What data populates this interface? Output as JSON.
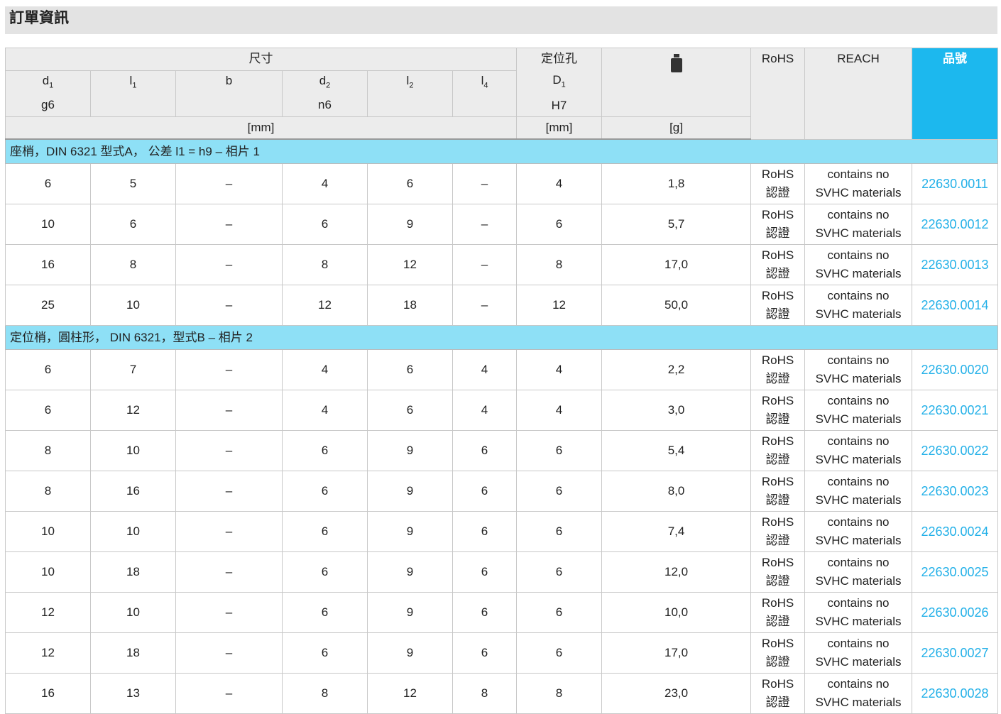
{
  "title": "訂單資訊",
  "header": {
    "group_dims": "尺寸",
    "d1": "d",
    "d1_sub": "1",
    "d1_tol": "g6",
    "l1": "l",
    "l1_sub": "1",
    "b": "b",
    "d2": "d",
    "d2_sub": "2",
    "d2_tol": "n6",
    "l2": "l",
    "l2_sub": "2",
    "l4": "l",
    "l4_sub": "4",
    "hole": "定位孔",
    "D1": "D",
    "D1_sub": "1",
    "D1_tol": "H7",
    "mm": "[mm]",
    "hole_mm": "[mm]",
    "g": "[g]",
    "weight_icon": "weight-icon",
    "rohs": "RoHS",
    "reach": "REACH",
    "part_no": "品號"
  },
  "sections": [
    {
      "label": "座梢，DIN 6321 型式A， 公差 l1 = h9  – 相片 1",
      "rows": [
        [
          "6",
          "5",
          "–",
          "4",
          "6",
          "–",
          "4",
          "1,8",
          "22630.0011"
        ],
        [
          "10",
          "6",
          "–",
          "6",
          "9",
          "–",
          "6",
          "5,7",
          "22630.0012"
        ],
        [
          "16",
          "8",
          "–",
          "8",
          "12",
          "–",
          "8",
          "17,0",
          "22630.0013"
        ],
        [
          "25",
          "10",
          "–",
          "12",
          "18",
          "–",
          "12",
          "50,0",
          "22630.0014"
        ]
      ]
    },
    {
      "label": "定位梢，圓柱形， DIN 6321，型式B – 相片 2",
      "rows": [
        [
          "6",
          "7",
          "–",
          "4",
          "6",
          "4",
          "4",
          "2,2",
          "22630.0020"
        ],
        [
          "6",
          "12",
          "–",
          "4",
          "6",
          "4",
          "4",
          "3,0",
          "22630.0021"
        ],
        [
          "8",
          "10",
          "–",
          "6",
          "9",
          "6",
          "6",
          "5,4",
          "22630.0022"
        ],
        [
          "8",
          "16",
          "–",
          "6",
          "9",
          "6",
          "6",
          "8,0",
          "22630.0023"
        ],
        [
          "10",
          "10",
          "–",
          "6",
          "9",
          "6",
          "6",
          "7,4",
          "22630.0024"
        ],
        [
          "10",
          "18",
          "–",
          "6",
          "9",
          "6",
          "6",
          "12,0",
          "22630.0025"
        ],
        [
          "12",
          "10",
          "–",
          "6",
          "9",
          "6",
          "6",
          "10,0",
          "22630.0026"
        ],
        [
          "12",
          "18",
          "–",
          "6",
          "9",
          "6",
          "6",
          "17,0",
          "22630.0027"
        ],
        [
          "16",
          "13",
          "–",
          "8",
          "12",
          "8",
          "8",
          "23,0",
          "22630.0028"
        ]
      ]
    }
  ],
  "rohs_cell": [
    "RoHS",
    "認證"
  ],
  "reach_cell": [
    "contains no",
    "SVHC materials"
  ],
  "colors": {
    "part_header": "#1cb8ee",
    "section": "#8ee0f6",
    "link": "#22b0e8"
  }
}
